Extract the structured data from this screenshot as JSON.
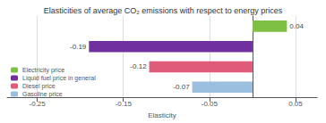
{
  "chart_data": {
    "type": "bar",
    "orientation": "horizontal",
    "title": "Elasticities of average CO₂ emissions with respect to energy prices",
    "xlabel": "Elasticity",
    "categories": [
      "Electricity price",
      "Liquid fuel price in general",
      "Diesel price",
      "Gasoline price"
    ],
    "values": [
      0.04,
      -0.19,
      -0.12,
      -0.07
    ],
    "colors": [
      "#7dc043",
      "#7030a0",
      "#e05a7a",
      "#9bbfde"
    ],
    "xlim": [
      -0.285,
      0.075
    ],
    "xticks": [
      -0.25,
      -0.15,
      -0.05,
      0.05
    ],
    "grid": true,
    "legend": "lower left",
    "data_labels": true,
    "tick_labels": "x"
  }
}
